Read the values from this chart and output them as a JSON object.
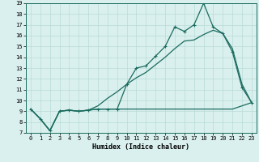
{
  "xlabel": "Humidex (Indice chaleur)",
  "bg_color": "#d9f0ee",
  "line_color": "#1a6b5e",
  "grid_color": "#b8dbd8",
  "xlim": [
    -0.5,
    23.5
  ],
  "ylim": [
    7,
    19
  ],
  "xticks": [
    0,
    1,
    2,
    3,
    4,
    5,
    6,
    7,
    8,
    9,
    10,
    11,
    12,
    13,
    14,
    15,
    16,
    17,
    18,
    19,
    20,
    21,
    22,
    23
  ],
  "yticks": [
    7,
    8,
    9,
    10,
    11,
    12,
    13,
    14,
    15,
    16,
    17,
    18,
    19
  ],
  "line1_x": [
    0,
    1,
    2,
    3,
    4,
    5,
    6,
    7,
    8,
    9,
    10,
    11,
    12,
    13,
    14,
    15,
    16,
    17,
    18,
    19,
    20,
    21,
    22,
    23
  ],
  "line1_y": [
    9.2,
    8.3,
    7.2,
    9.0,
    9.1,
    9.0,
    9.1,
    9.2,
    9.2,
    9.2,
    11.5,
    13.0,
    13.2,
    14.1,
    15.0,
    16.8,
    16.4,
    17.0,
    19.0,
    16.8,
    16.2,
    14.5,
    11.2,
    9.8
  ],
  "line2_x": [
    0,
    1,
    2,
    3,
    4,
    5,
    6,
    7,
    8,
    9,
    10,
    11,
    12,
    13,
    14,
    15,
    16,
    17,
    18,
    19,
    20,
    21,
    22,
    23
  ],
  "line2_y": [
    9.2,
    8.3,
    7.2,
    9.0,
    9.1,
    9.0,
    9.1,
    9.2,
    9.2,
    9.2,
    9.2,
    9.2,
    9.2,
    9.2,
    9.2,
    9.2,
    9.2,
    9.2,
    9.2,
    9.2,
    9.2,
    9.2,
    9.5,
    9.8
  ],
  "line3_x": [
    0,
    1,
    2,
    3,
    4,
    5,
    6,
    7,
    8,
    9,
    10,
    11,
    12,
    13,
    14,
    15,
    16,
    17,
    18,
    19,
    20,
    21,
    22,
    23
  ],
  "line3_y": [
    9.2,
    8.3,
    7.2,
    9.0,
    9.1,
    9.0,
    9.1,
    9.5,
    10.2,
    10.8,
    11.5,
    12.1,
    12.6,
    13.3,
    14.0,
    14.8,
    15.5,
    15.6,
    16.1,
    16.5,
    16.2,
    14.8,
    11.5,
    9.8
  ]
}
